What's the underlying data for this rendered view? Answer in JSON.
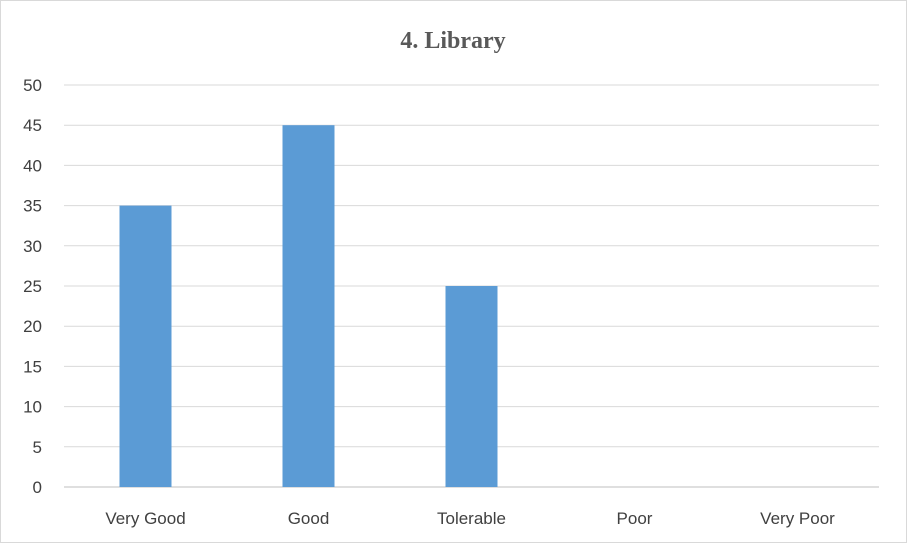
{
  "chart_data": {
    "type": "bar",
    "title": "4. Library",
    "categories": [
      "Very Good",
      "Good",
      "Tolerable",
      "Poor",
      "Very Poor"
    ],
    "values": [
      35,
      45,
      25,
      0,
      0
    ],
    "xlabel": "",
    "ylabel": "",
    "ylim": [
      0,
      50
    ],
    "yticks": [
      0,
      5,
      10,
      15,
      20,
      25,
      30,
      35,
      40,
      45,
      50
    ],
    "grid": true,
    "legend": "none",
    "colors": {
      "bar": "#5b9bd5",
      "grid": "#d9d9d9",
      "axis": "#bfbfbf"
    }
  }
}
